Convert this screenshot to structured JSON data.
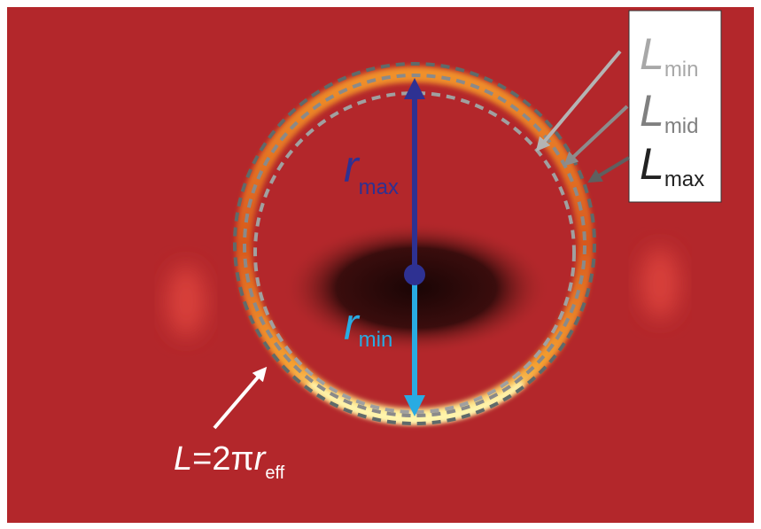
{
  "legend": {
    "items": [
      {
        "symbol": "L",
        "subscript": "min"
      },
      {
        "symbol": "L",
        "subscript": "mid"
      },
      {
        "symbol": "L",
        "subscript": "max"
      }
    ]
  },
  "annotations": {
    "r_max": {
      "symbol": "r",
      "subscript": "max"
    },
    "r_min": {
      "symbol": "r",
      "subscript": "min"
    },
    "formula": {
      "parts": [
        "L",
        "=2π",
        "r"
      ],
      "subscript": "eff"
    }
  }
}
